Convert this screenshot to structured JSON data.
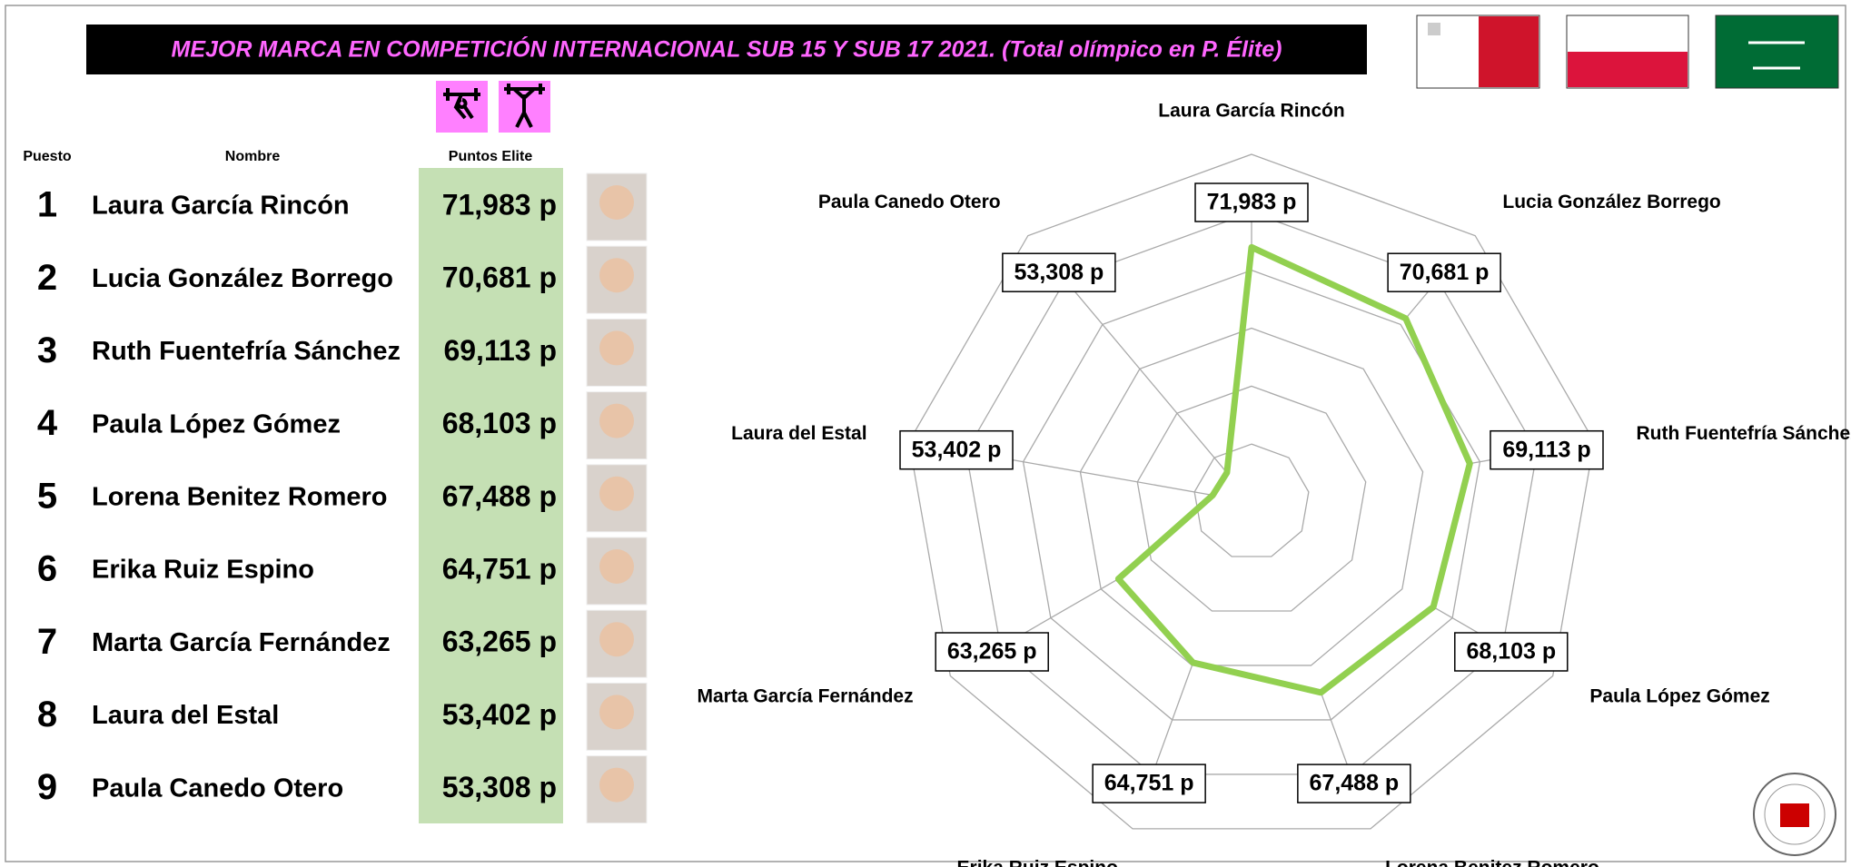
{
  "header": {
    "title": "MEJOR MARCA EN COMPETICIÓN INTERNACIONAL SUB 15 Y SUB 17 2021. (Total olímpico en P. Élite)"
  },
  "table": {
    "columns": [
      "Puesto",
      "Nombre",
      "Puntos Elite"
    ],
    "rows": [
      [
        1,
        "Laura García Rincón",
        "71,983 p"
      ],
      [
        2,
        "Lucia González Borrego",
        "70,681 p"
      ],
      [
        3,
        "Ruth Fuentefría Sánchez",
        "69,113 p"
      ],
      [
        4,
        "Paula López Gómez",
        "68,103 p"
      ],
      [
        5,
        "Lorena Benitez Romero",
        "67,488 p"
      ],
      [
        6,
        "Erika Ruiz Espino",
        "64,751 p"
      ],
      [
        7,
        "Marta García Fernández",
        "63,265 p"
      ],
      [
        8,
        "Laura del Estal",
        "53,402 p"
      ],
      [
        9,
        "Paula Canedo Otero",
        "53,308 p"
      ]
    ]
  },
  "chart_data": {
    "type": "radar",
    "categories": [
      "Laura García Rincón",
      "Lucia González Borrego",
      "Ruth Fuentefría Sánchez",
      "Paula López Gómez",
      "Lorena Benitez Romero",
      "Erika Ruiz Espino",
      "Marta García Fernández",
      "Laura del Estal",
      "Paula Canedo Otero"
    ],
    "values": [
      71.983,
      70.681,
      69.113,
      68.103,
      67.488,
      64.751,
      63.265,
      53.402,
      53.308
    ],
    "value_labels": [
      "71,983 p",
      "70,681 p",
      "69,113 p",
      "68,103 p",
      "67,488 p",
      "64,751 p",
      "63,265 p",
      "53,402 p",
      "53,308 p"
    ],
    "color": "#92d050",
    "ylim": [
      50,
      80
    ],
    "yticks": [
      55,
      60,
      65,
      70,
      75,
      80
    ],
    "grid": true
  }
}
